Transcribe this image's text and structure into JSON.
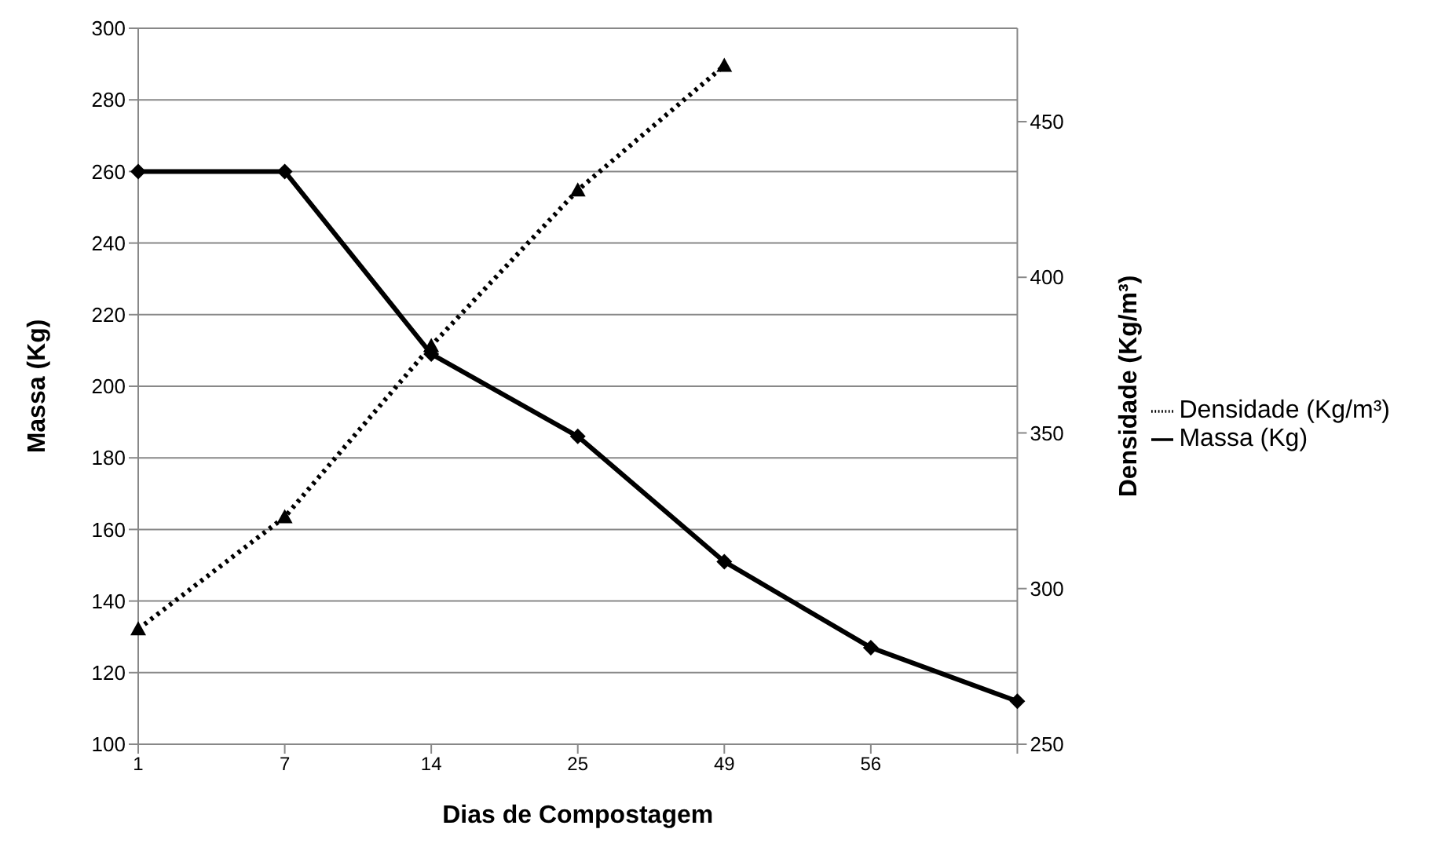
{
  "chart_data": {
    "type": "line",
    "xlabel": "Dias de Compostagem",
    "ylabel": "Massa (Kg)",
    "y2label": "Densidade (Kg/m³)",
    "categories": [
      "1",
      "7",
      "14",
      "25",
      "49",
      "56",
      null
    ],
    "series": [
      {
        "name": "Massa (Kg)",
        "color": "#000000",
        "marker": "diamond",
        "line_style": "solid",
        "values": [
          260,
          260,
          209,
          186,
          151,
          127,
          112
        ]
      },
      {
        "name": "Densidade (Kg/m³)",
        "color": "#000000",
        "marker": "triangle",
        "line_style": "dotted",
        "axis": "y2",
        "values": [
          287,
          323,
          378,
          428,
          468,
          null,
          null
        ]
      }
    ],
    "ylim": [
      100,
      300
    ],
    "yticks": [
      100,
      120,
      140,
      160,
      180,
      200,
      220,
      240,
      260,
      280,
      300
    ],
    "y2lim": [
      250,
      480
    ],
    "y2ticks": [
      250,
      300,
      350,
      400,
      450
    ],
    "grid": "y",
    "legend": "right"
  }
}
